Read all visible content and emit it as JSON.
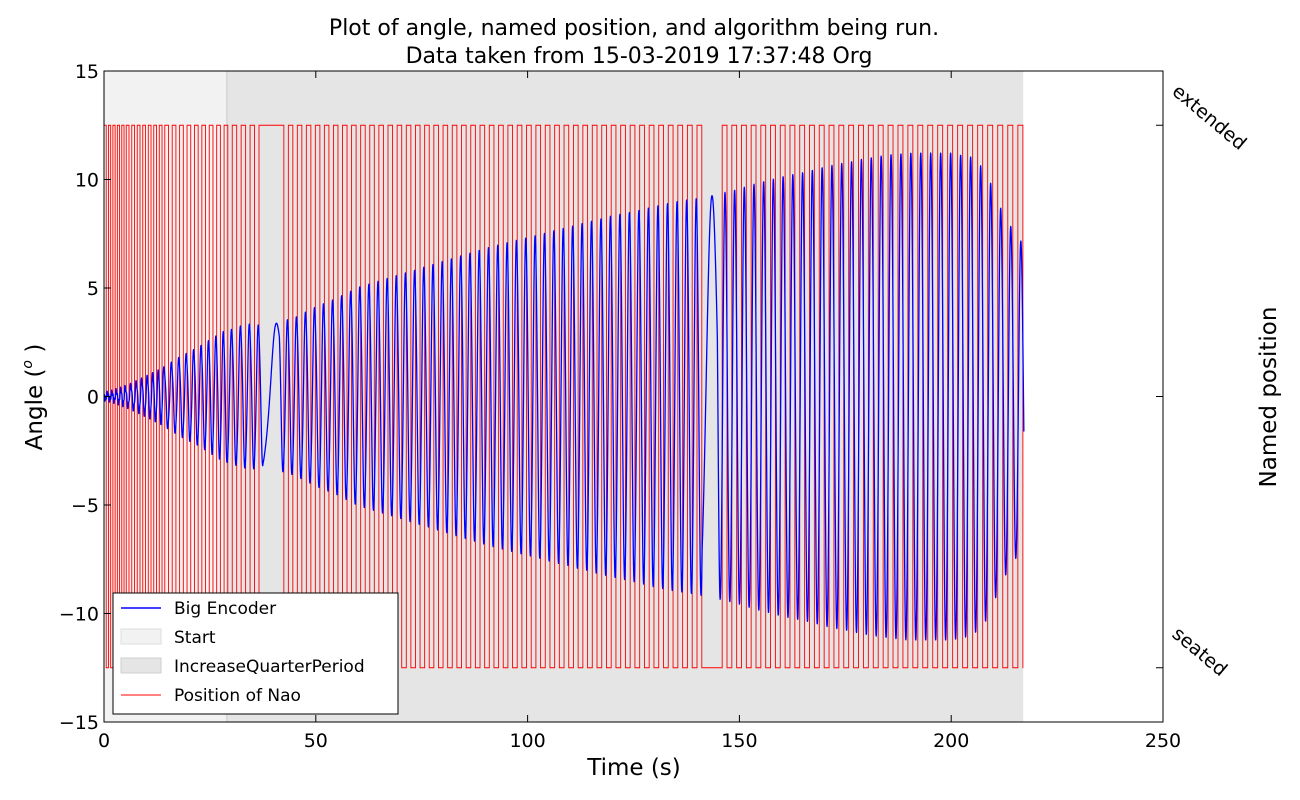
{
  "chart_data": {
    "type": "line",
    "title": "Plot of angle, named position, and algorithm being run.",
    "subtitle": "Data taken from 15-03-2019 17:37:48 Org",
    "xlabel": "Time (s)",
    "ylabel": "Angle (°)",
    "ylabel_text": "Angle",
    "ylabel_unit": "o",
    "y2label": "Named position",
    "xlim": [
      0,
      250
    ],
    "ylim": [
      -15,
      15
    ],
    "xticks": [
      "0",
      "50",
      "100",
      "150",
      "200",
      "250"
    ],
    "xtick_values": [
      0,
      50,
      100,
      150,
      200,
      250
    ],
    "yticks": [
      "15",
      "10",
      "5",
      "0",
      "−5",
      "−10",
      "−15"
    ],
    "ytick_values": [
      15,
      10,
      5,
      0,
      -5,
      -10,
      -15
    ],
    "y2ticks": [
      "extended",
      "seated"
    ],
    "y2tick_values": [
      12.5,
      -12.5
    ],
    "grid": false,
    "legend_position": "lower-left",
    "legend": [
      "Big Encoder",
      "Start",
      "IncreaseQuarterPeriod",
      "Position of Nao"
    ],
    "regions": [
      {
        "name": "Start",
        "x0": 0,
        "x1": 29,
        "color": "#f2f2f2"
      },
      {
        "name": "IncreaseQuarterPeriod",
        "x0": 29,
        "x1": 217,
        "color": "#e5e5e5"
      }
    ],
    "series": [
      {
        "name": "Big Encoder",
        "color": "#0000ff",
        "style": "line",
        "description_points": {
          "t": [
            0,
            2,
            4,
            6,
            8,
            10,
            12,
            14,
            16,
            18,
            20,
            22,
            24,
            26,
            28,
            30,
            32,
            34,
            36,
            38,
            39.3,
            40,
            45,
            50,
            55,
            60,
            65,
            70,
            75,
            80,
            85,
            90,
            95,
            100,
            105,
            110,
            115,
            120,
            125,
            130,
            135,
            140,
            142.5,
            143,
            145,
            150,
            155,
            160,
            165,
            170,
            175,
            180,
            185,
            190,
            195,
            200,
            205,
            208,
            210,
            212,
            215,
            217
          ],
          "amp": [
            0.1,
            0.2,
            0.35,
            0.5,
            0.7,
            0.9,
            1.1,
            1.3,
            1.55,
            1.8,
            2.0,
            2.2,
            2.45,
            2.7,
            2.95,
            3.05,
            3.2,
            3.3,
            3.3,
            3.1,
            3.2,
            3.3,
            3.6,
            4.1,
            4.5,
            5.0,
            5.3,
            5.6,
            5.9,
            6.2,
            6.5,
            6.8,
            7.05,
            7.3,
            7.55,
            7.8,
            8.05,
            8.3,
            8.5,
            8.75,
            8.95,
            9.1,
            9.2,
            9.2,
            9.3,
            9.55,
            9.85,
            10.1,
            10.3,
            10.55,
            10.75,
            10.95,
            11.1,
            11.2,
            11.2,
            11.2,
            11.0,
            10.4,
            9.5,
            8.5,
            7.5,
            7.0
          ]
        }
      },
      {
        "name": "Position of Nao",
        "color": "#ff0000",
        "style": "step",
        "levels": [
          "extended",
          "seated"
        ],
        "level_values": [
          12.5,
          -12.5
        ],
        "t_range": [
          0,
          217
        ],
        "gaps": [
          {
            "level": "extended",
            "x0": 37.6,
            "x1": 41.4
          },
          {
            "level": "seated",
            "x0": 141.2,
            "x1": 144.8
          }
        ]
      }
    ]
  }
}
